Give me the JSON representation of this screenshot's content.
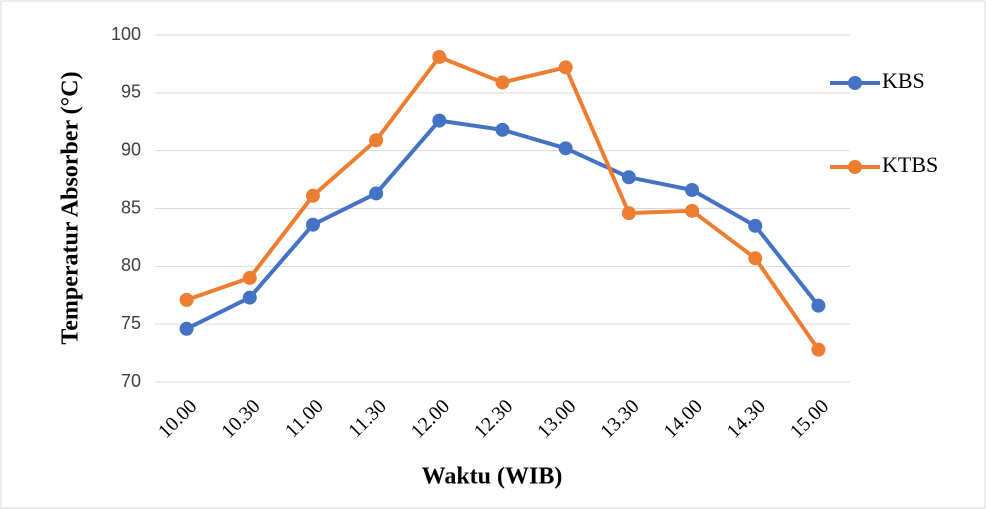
{
  "chart_data": {
    "type": "line",
    "x_label": "Waktu (WIB)",
    "y_label": "Temperatur Absorber (°C)",
    "categories": [
      "10.00",
      "10.30",
      "11.00",
      "11.30",
      "12.00",
      "12.30",
      "13.00",
      "13.30",
      "14.00",
      "14.30",
      "15.00"
    ],
    "series": [
      {
        "name": "KBS",
        "color": "#4472c4",
        "values": [
          74.6,
          77.3,
          83.6,
          86.3,
          92.6,
          91.8,
          90.2,
          87.7,
          86.6,
          83.5,
          76.6
        ]
      },
      {
        "name": "KTBS",
        "color": "#ed7d31",
        "values": [
          77.1,
          79.0,
          86.1,
          90.9,
          98.1,
          95.9,
          97.2,
          84.6,
          84.8,
          80.7,
          72.8
        ]
      }
    ],
    "ylim": [
      70,
      100
    ],
    "yticks": [
      70,
      75,
      80,
      85,
      90,
      95,
      100
    ],
    "grid": true,
    "legend": "right"
  }
}
